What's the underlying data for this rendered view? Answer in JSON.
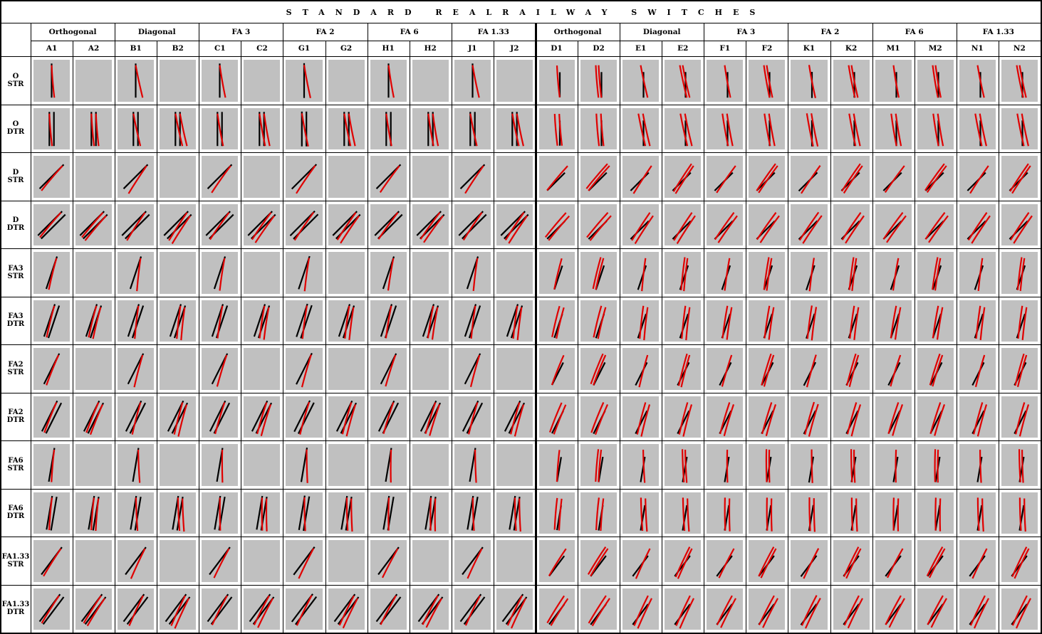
{
  "title": "STANDARD   REALRAILWAY   SWITCHES",
  "groups": [
    {
      "label": "Orthogonal",
      "codes": [
        "A1",
        "A2"
      ]
    },
    {
      "label": "Diagonal",
      "codes": [
        "B1",
        "B2"
      ]
    },
    {
      "label": "FA 3",
      "codes": [
        "C1",
        "C2"
      ]
    },
    {
      "label": "FA 2",
      "codes": [
        "G1",
        "G2"
      ]
    },
    {
      "label": "FA 6",
      "codes": [
        "H1",
        "H2"
      ]
    },
    {
      "label": "FA 1.33",
      "codes": [
        "J1",
        "J2"
      ]
    },
    {
      "label": "Orthogonal",
      "codes": [
        "D1",
        "D2"
      ]
    },
    {
      "label": "Diagonal",
      "codes": [
        "E1",
        "E2"
      ]
    },
    {
      "label": "FA 3",
      "codes": [
        "F1",
        "F2"
      ]
    },
    {
      "label": "FA 2",
      "codes": [
        "K1",
        "K2"
      ]
    },
    {
      "label": "FA 6",
      "codes": [
        "M1",
        "M2"
      ]
    },
    {
      "label": "FA 1.33",
      "codes": [
        "N1",
        "N2"
      ]
    }
  ],
  "rows": [
    {
      "top": "O",
      "bottom": "STR"
    },
    {
      "top": "O",
      "bottom": "DTR"
    },
    {
      "top": "D",
      "bottom": "STR"
    },
    {
      "top": "D",
      "bottom": "DTR"
    },
    {
      "top": "FA3",
      "bottom": "STR"
    },
    {
      "top": "FA3",
      "bottom": "DTR"
    },
    {
      "top": "FA2",
      "bottom": "STR"
    },
    {
      "top": "FA2",
      "bottom": "DTR"
    },
    {
      "top": "FA6",
      "bottom": "STR"
    },
    {
      "top": "FA6",
      "bottom": "DTR"
    },
    {
      "top": "FA1.33",
      "bottom": "STR"
    },
    {
      "top": "FA1.33",
      "bottom": "DTR"
    }
  ],
  "colors": {
    "cell_background": "#c0c0c0",
    "straight_track": "#000000",
    "diverging_track": "#e00000",
    "grid_line": "#000000"
  }
}
